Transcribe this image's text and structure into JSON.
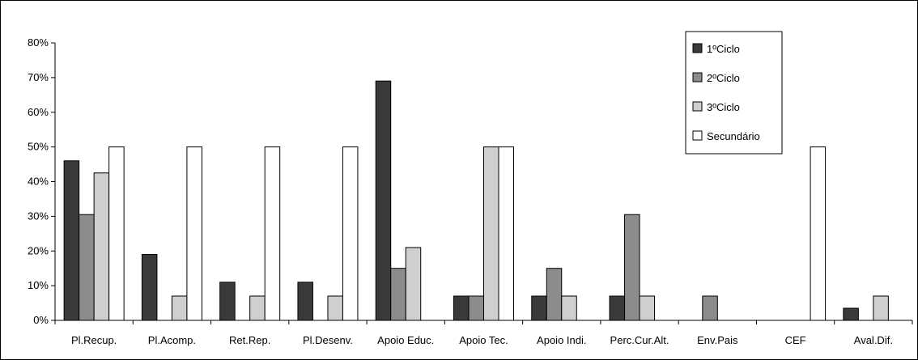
{
  "chart_data": {
    "type": "bar",
    "categories": [
      "Pl.Recup.",
      "Pl.Acomp.",
      "Ret.Rep.",
      "Pl.Desenv.",
      "Apoio Educ.",
      "Apoio Tec.",
      "Apoio Indi.",
      "Perc.Cur.Alt.",
      "Env.Pais",
      "CEF",
      "Aval.Dif."
    ],
    "series": [
      {
        "name": "1ºCiclo",
        "color": "#3a3a3a",
        "values": [
          46,
          19,
          11,
          11,
          69,
          7,
          7,
          7,
          0,
          0,
          3.5
        ]
      },
      {
        "name": "2ºCiclo",
        "color": "#8c8c8c",
        "values": [
          30.5,
          0,
          0,
          0,
          15,
          7,
          15,
          30.5,
          7,
          0,
          0
        ]
      },
      {
        "name": "3ºCiclo",
        "color": "#cfcfcf",
        "values": [
          42.5,
          7,
          7,
          7,
          21,
          50,
          7,
          7,
          0,
          0,
          7
        ]
      },
      {
        "name": "Secundário",
        "color": "#ffffff",
        "values": [
          50,
          50,
          50,
          50,
          0,
          50,
          0,
          0,
          0,
          50,
          0
        ]
      }
    ],
    "ylim": [
      0,
      80
    ],
    "yticks": [
      "0%",
      "10%",
      "20%",
      "30%",
      "40%",
      "50%",
      "60%",
      "70%",
      "80%"
    ],
    "legend_position": "top-right",
    "grid": false
  }
}
